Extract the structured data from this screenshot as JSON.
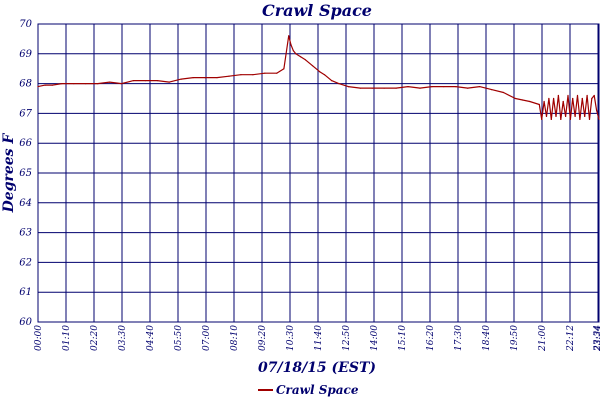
{
  "chart_data": {
    "type": "line",
    "title": "Crawl Space",
    "xlabel": "07/18/15 (EST)",
    "ylabel": "Degrees F",
    "ylim": [
      60,
      70
    ],
    "yticks": [
      "60",
      "61",
      "62",
      "63",
      "64",
      "65",
      "66",
      "67",
      "68",
      "69",
      "70"
    ],
    "xticks": [
      "00:00",
      "01:10",
      "02:20",
      "03:30",
      "04:40",
      "05:50",
      "07:00",
      "08:10",
      "09:20",
      "10:30",
      "11:40",
      "12:50",
      "14:00",
      "15:10",
      "16:20",
      "17:30",
      "18:40",
      "19:50",
      "21:00",
      "22:12",
      "23:24",
      "23:34"
    ],
    "grid": true,
    "legend_position": "bottom-center",
    "colors": {
      "series": "#a00000",
      "grid": "#00006e",
      "text": "#00006e"
    },
    "series": [
      {
        "name": "Crawl Space",
        "x_hours": [
          0.0,
          0.3,
          0.6,
          1.0,
          1.5,
          2.0,
          2.5,
          3.0,
          3.5,
          4.0,
          4.5,
          5.0,
          5.5,
          6.0,
          6.5,
          7.0,
          7.5,
          8.0,
          8.5,
          9.0,
          9.5,
          10.0,
          10.3,
          10.5,
          10.6,
          10.7,
          10.8,
          11.0,
          11.2,
          11.5,
          11.8,
          12.0,
          12.3,
          12.6,
          13.0,
          13.5,
          14.0,
          14.5,
          15.0,
          15.5,
          16.0,
          16.5,
          17.0,
          17.5,
          18.0,
          18.5,
          19.0,
          19.5,
          20.0,
          20.3,
          20.6,
          21.0,
          21.1,
          21.2,
          21.3,
          21.4,
          21.5,
          21.6,
          21.7,
          21.8,
          21.9,
          22.0,
          22.1,
          22.2,
          22.3,
          22.4,
          22.5,
          22.6,
          22.7,
          22.8,
          22.9,
          23.0,
          23.1,
          23.2,
          23.3,
          23.4,
          23.5
        ],
        "values": [
          67.9,
          67.95,
          67.95,
          68.0,
          68.0,
          68.0,
          68.0,
          68.05,
          68.0,
          68.1,
          68.1,
          68.1,
          68.05,
          68.15,
          68.2,
          68.2,
          68.2,
          68.25,
          68.3,
          68.3,
          68.35,
          68.35,
          68.5,
          69.6,
          69.3,
          69.1,
          69.0,
          68.9,
          68.8,
          68.6,
          68.4,
          68.3,
          68.1,
          68.0,
          67.9,
          67.85,
          67.85,
          67.85,
          67.85,
          67.9,
          67.85,
          67.9,
          67.9,
          67.9,
          67.85,
          67.9,
          67.8,
          67.7,
          67.5,
          67.45,
          67.4,
          67.3,
          66.8,
          67.4,
          66.9,
          67.5,
          66.8,
          67.5,
          66.9,
          67.6,
          66.8,
          67.4,
          66.9,
          67.6,
          66.8,
          67.5,
          66.9,
          67.6,
          66.8,
          67.5,
          66.9,
          67.6,
          66.8,
          67.5,
          67.6,
          67.1,
          66.8
        ]
      }
    ]
  }
}
